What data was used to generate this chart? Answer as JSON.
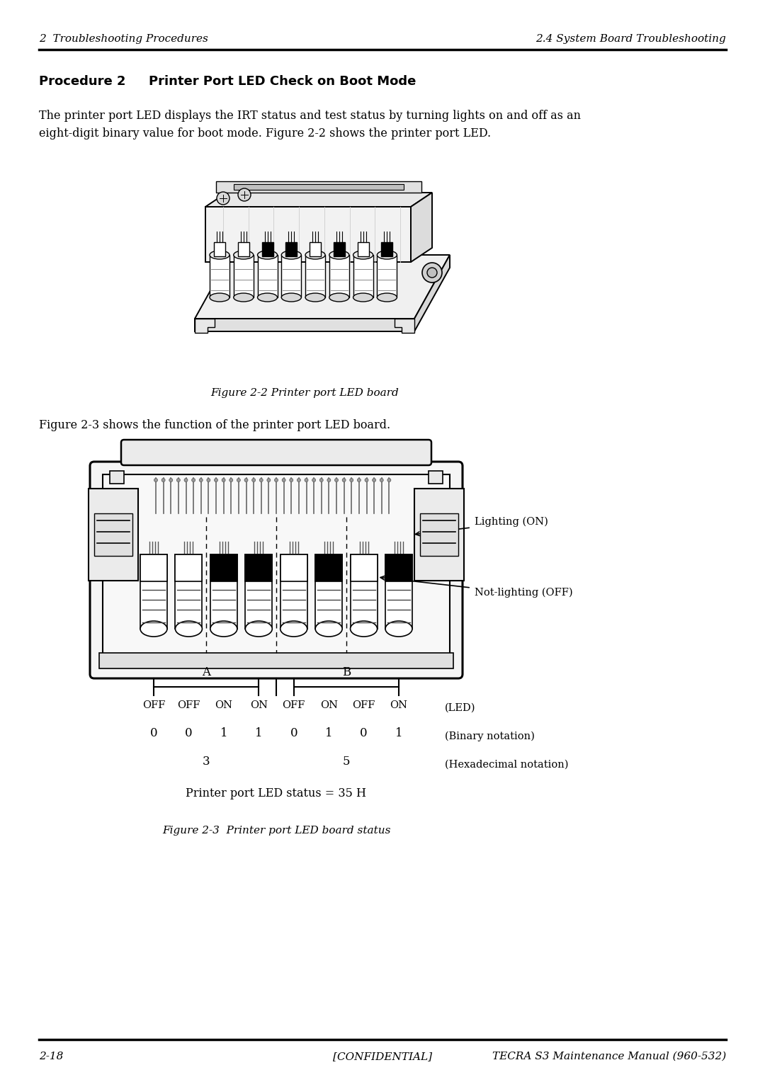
{
  "bg_color": "#ffffff",
  "page_width": 10.8,
  "page_height": 15.28,
  "header_left": "2  Troubleshooting Procedures",
  "header_right": "2.4 System Board Troubleshooting",
  "footer_left": "2-18",
  "footer_center": "[CONFIDENTIAL]",
  "footer_right": "TECRA S3 Maintenance Manual (960-532)",
  "proc_label": "Procedure 2",
  "proc_title": "Printer Port LED Check on Boot Mode",
  "body_text_1": "The printer port LED displays the IRT status and test status by turning lights on and off as an",
  "body_text_2": "eight-digit binary value for boot mode. Figure 2-2 shows the printer port LED.",
  "fig2_caption": "Figure 2-2 Printer port LED board",
  "fig3_intro": "Figure 2-3 shows the function of the printer port LED board.",
  "led_labels": [
    "OFF",
    "OFF",
    "ON",
    "ON",
    "OFF",
    "ON",
    "OFF",
    "ON"
  ],
  "binary_vals": [
    "0",
    "0",
    "1",
    "1",
    "0",
    "1",
    "0",
    "1"
  ],
  "hex_A": "3",
  "hex_B": "5",
  "status_text": "Printer port LED status = 35 H",
  "fig3_caption": "Figure 2-3  Printer port LED board status",
  "lighting_label": "Lighting (ON)",
  "not_lighting_label": "Not-lighting (OFF)",
  "led_states": [
    false,
    false,
    true,
    true,
    false,
    true,
    false,
    true
  ]
}
